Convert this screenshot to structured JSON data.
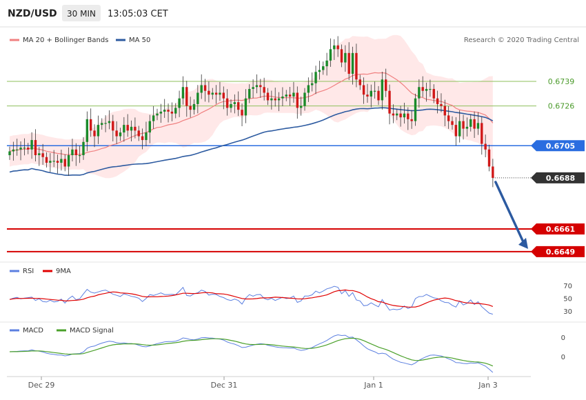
{
  "header": {
    "pair": "NZD/USD",
    "timeframe": "30 MIN",
    "time": "13:05:03 CET"
  },
  "legend_main": {
    "bb_label": "MA 20 + Bollinger Bands",
    "ma50_label": "MA 50",
    "credit": "Research © 2020 Trading Central"
  },
  "legend_rsi": {
    "rsi_label": "RSI",
    "ma_label": "9MA"
  },
  "legend_macd": {
    "macd_label": "MACD",
    "signal_label": "MACD Signal"
  },
  "colors": {
    "up": "#1a8a2a",
    "down": "#d01818",
    "ma50": "#2c5aa0",
    "bb": "#f08080",
    "current": "#2a6de0",
    "support": "#d50000",
    "resistance": "#8dbf5a",
    "last": "#333333",
    "arrow": "#2c5aa0"
  },
  "chart_data": [
    {
      "type": "candlestick",
      "title": "NZD/USD",
      "x_ticks": [
        "Dec 29",
        "Dec 31",
        "Jan 1",
        "Jan 3"
      ],
      "y_range": [
        0.6645,
        0.6765
      ],
      "levels": [
        {
          "value": "0.6739",
          "kind": "resistance"
        },
        {
          "value": "0.6726",
          "kind": "resistance"
        },
        {
          "value": "0.6705",
          "kind": "current"
        },
        {
          "value": "0.6688",
          "kind": "last"
        },
        {
          "value": "0.6661",
          "kind": "support"
        },
        {
          "value": "0.6649",
          "kind": "support"
        }
      ],
      "close": [
        0.6702,
        0.6703,
        0.6703,
        0.6704,
        0.6704,
        0.6703,
        0.6708,
        0.67,
        0.6701,
        0.6699,
        0.6696,
        0.6697,
        0.6697,
        0.6696,
        0.6698,
        0.6694,
        0.67,
        0.6703,
        0.67,
        0.67,
        0.6707,
        0.6719,
        0.6713,
        0.671,
        0.6716,
        0.6717,
        0.6717,
        0.6718,
        0.6713,
        0.671,
        0.6712,
        0.6716,
        0.6713,
        0.6715,
        0.6713,
        0.671,
        0.6708,
        0.6712,
        0.6718,
        0.6721,
        0.6722,
        0.6723,
        0.6724,
        0.6723,
        0.6722,
        0.6725,
        0.673,
        0.6736,
        0.6726,
        0.6724,
        0.6727,
        0.6733,
        0.6737,
        0.6734,
        0.6732,
        0.6733,
        0.6732,
        0.6733,
        0.673,
        0.6725,
        0.6727,
        0.6728,
        0.6724,
        0.6721,
        0.673,
        0.6735,
        0.6736,
        0.6737,
        0.6736,
        0.6733,
        0.6729,
        0.673,
        0.6729,
        0.673,
        0.6731,
        0.6732,
        0.6731,
        0.6733,
        0.6725,
        0.6726,
        0.6733,
        0.6737,
        0.6738,
        0.6744,
        0.6745,
        0.6747,
        0.675,
        0.6756,
        0.6758,
        0.6756,
        0.6749,
        0.6754,
        0.6743,
        0.6754,
        0.674,
        0.6737,
        0.6732,
        0.6731,
        0.6734,
        0.6734,
        0.6729,
        0.674,
        0.6734,
        0.6722,
        0.6721,
        0.6722,
        0.672,
        0.6722,
        0.6719,
        0.6718,
        0.673,
        0.6736,
        0.6734,
        0.6735,
        0.6735,
        0.673,
        0.6727,
        0.6726,
        0.6721,
        0.6718,
        0.6716,
        0.671,
        0.6718,
        0.6714,
        0.6715,
        0.6719,
        0.6714,
        0.6717,
        0.6706,
        0.6703,
        0.6694,
        0.6688
      ]
    },
    {
      "type": "line",
      "title": "RSI",
      "series_names": [
        "RSI",
        "9MA"
      ],
      "y_ticks": [
        "70",
        "50",
        "30"
      ],
      "y_range": [
        18,
        85
      ]
    },
    {
      "type": "line",
      "title": "MACD",
      "series_names": [
        "MACD",
        "MACD Signal"
      ],
      "y_ticks": [
        "0",
        "0"
      ]
    }
  ]
}
